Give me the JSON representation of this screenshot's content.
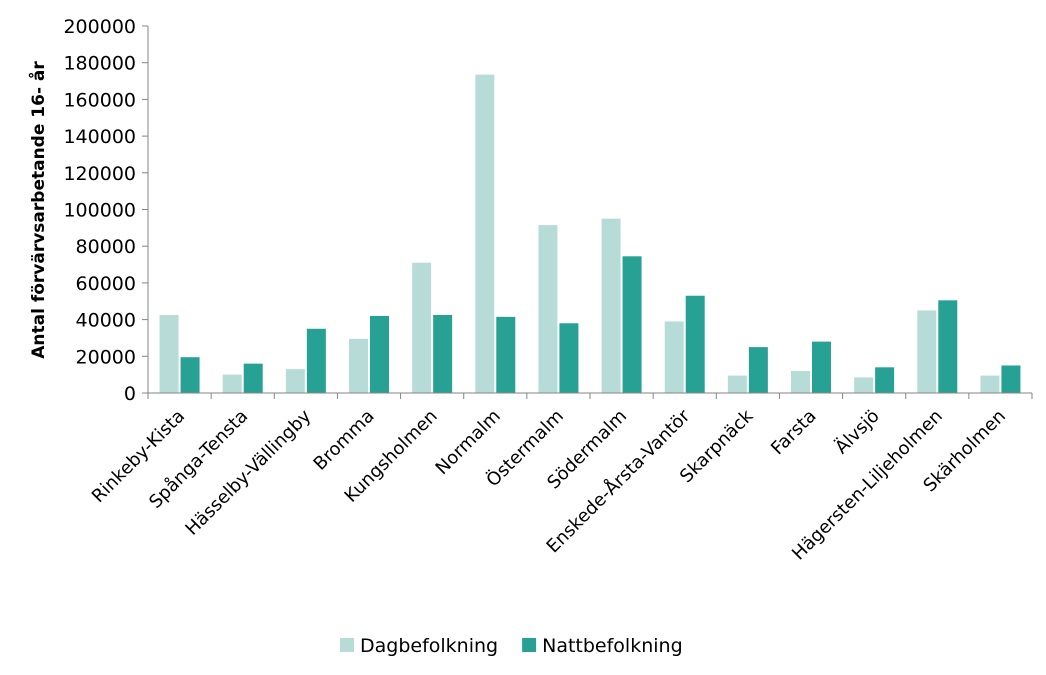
{
  "chart_data": {
    "type": "bar",
    "ylabel": "Antal förvärvsarbetande 16- år",
    "ylim": [
      0,
      200000
    ],
    "yticks": [
      0,
      20000,
      40000,
      60000,
      80000,
      100000,
      120000,
      140000,
      160000,
      180000,
      200000
    ],
    "grid": false,
    "legend_position": "bottom",
    "categories": [
      "Rinkeby-Kista",
      "Spånga-Tensta",
      "Hässelby-Vällingby",
      "Bromma",
      "Kungsholmen",
      "Normalm",
      "Östermalm",
      "Södermalm",
      "Enskede-Årsta-Vantör",
      "Skarpnäck",
      "Farsta",
      "Älvsjö",
      "Hägersten-Liljeholmen",
      "Skärholmen"
    ],
    "series": [
      {
        "name": "Dagbefolkning",
        "color": "#b7dcd8",
        "values": [
          42500,
          10000,
          13000,
          29500,
          71000,
          173500,
          91500,
          95000,
          39000,
          9500,
          12000,
          8500,
          45000,
          9500
        ]
      },
      {
        "name": "Nattbefolkning",
        "color": "#27a193",
        "values": [
          19500,
          16000,
          35000,
          42000,
          42500,
          41500,
          38000,
          74500,
          53000,
          25000,
          28000,
          14000,
          50500,
          15000
        ]
      }
    ]
  }
}
